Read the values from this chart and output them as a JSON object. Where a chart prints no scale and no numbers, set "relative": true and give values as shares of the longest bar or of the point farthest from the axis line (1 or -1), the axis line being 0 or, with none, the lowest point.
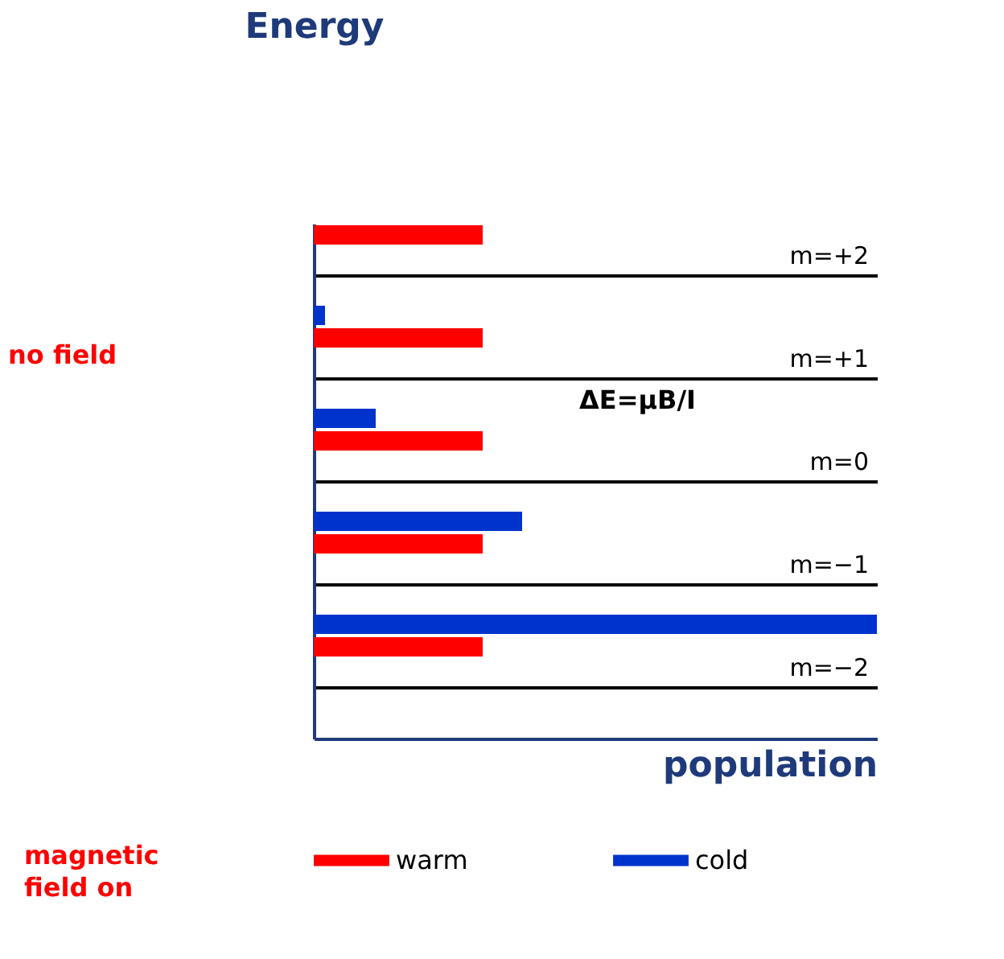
{
  "chart_data": {
    "type": "bar",
    "orientation": "horizontal",
    "relative": true,
    "xlabel": "population",
    "ylabel": "Energy",
    "categories": [
      "m=+2",
      "m=+1",
      "m=0",
      "m=−1",
      "m=−2"
    ],
    "series": [
      {
        "name": "warm",
        "color": "#ff0000",
        "values": [
          0.3,
          0.3,
          0.3,
          0.3,
          0.3
        ]
      },
      {
        "name": "cold",
        "color": "#0033cc",
        "values": [
          0,
          0.02,
          0.11,
          0.37,
          1
        ]
      }
    ],
    "annotations": [
      "no field",
      "magnetic field on",
      "ΔE=μB/I"
    ],
    "grid": "y",
    "legend": "bottom"
  }
}
